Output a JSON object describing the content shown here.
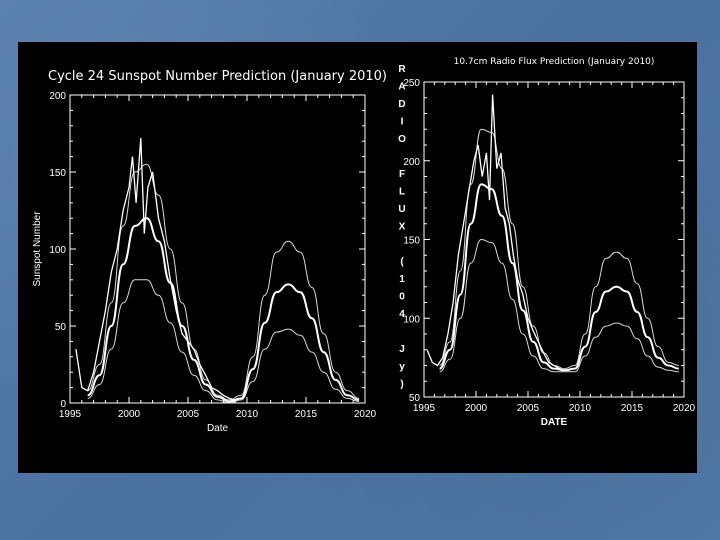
{
  "slide": {
    "background_color": "#4f77a6",
    "panel_color": "#000000",
    "line_color": "#ffffff"
  },
  "chart_data": [
    {
      "type": "line",
      "title": "Cycle 24 Sunspot Number Prediction (January 2010)",
      "xlabel": "Date",
      "ylabel": "Sunspot Number",
      "xlim": [
        1995,
        2020
      ],
      "ylim": [
        0,
        200
      ],
      "xticks": [
        "1995",
        "2000",
        "2005",
        "2010",
        "2015",
        "2020"
      ],
      "yticks": [
        "0",
        "50",
        "100",
        "150",
        "200"
      ],
      "grid": false,
      "series": [
        {
          "style": "observed-noisy",
          "x": [
            1995.5,
            1996.0,
            1996.5,
            1997.0,
            1997.5,
            1998.0,
            1998.5,
            1999.0,
            1999.5,
            2000.0,
            2000.3,
            2000.6,
            2001.0,
            2001.3,
            2001.6,
            2002.0,
            2002.5,
            2003.0,
            2003.5,
            2004.0,
            2004.5,
            2005.0,
            2005.5,
            2006.0,
            2006.5,
            2007.0,
            2007.5,
            2008.0,
            2008.5,
            2009.0
          ],
          "y": [
            35,
            10,
            8,
            20,
            40,
            60,
            85,
            100,
            125,
            140,
            160,
            130,
            172,
            110,
            140,
            150,
            120,
            105,
            80,
            60,
            45,
            40,
            35,
            25,
            18,
            10,
            8,
            5,
            3,
            2
          ]
        },
        {
          "style": "predicted-upper",
          "x": [
            1996.5,
            1997.5,
            1998.5,
            1999.5,
            2000.5,
            2001.5,
            2002.5,
            2003.5,
            2004.5,
            2005.5,
            2006.5,
            2007.5,
            2008.5,
            2009.5,
            2010.5,
            2011.5,
            2012.5,
            2013.5,
            2014.5,
            2015.5,
            2016.5,
            2017.5,
            2018.5,
            2019.5
          ],
          "y": [
            8,
            25,
            65,
            115,
            150,
            155,
            135,
            100,
            65,
            35,
            15,
            5,
            2,
            5,
            30,
            70,
            98,
            105,
            98,
            75,
            45,
            20,
            8,
            3
          ]
        },
        {
          "style": "predicted-mid",
          "x": [
            1996.5,
            1997.5,
            1998.5,
            1999.5,
            2000.5,
            2001.5,
            2002.5,
            2003.5,
            2004.5,
            2005.5,
            2006.5,
            2007.5,
            2008.5,
            2009.5,
            2010.5,
            2011.5,
            2012.5,
            2013.5,
            2014.5,
            2015.5,
            2016.5,
            2017.5,
            2018.5,
            2019.5
          ],
          "y": [
            5,
            18,
            50,
            90,
            115,
            120,
            105,
            78,
            50,
            28,
            12,
            4,
            1,
            3,
            22,
            52,
            72,
            77,
            72,
            55,
            33,
            15,
            5,
            2
          ]
        },
        {
          "style": "predicted-lower",
          "x": [
            1996.5,
            1997.5,
            1998.5,
            1999.5,
            2000.5,
            2001.5,
            2002.5,
            2003.5,
            2004.5,
            2005.5,
            2006.5,
            2007.5,
            2008.5,
            2009.5,
            2010.5,
            2011.5,
            2012.5,
            2013.5,
            2014.5,
            2015.5,
            2016.5,
            2017.5,
            2018.5,
            2019.5
          ],
          "y": [
            3,
            12,
            35,
            65,
            80,
            80,
            70,
            52,
            33,
            18,
            8,
            2,
            0,
            2,
            14,
            35,
            46,
            48,
            44,
            33,
            20,
            9,
            3,
            1
          ]
        }
      ]
    },
    {
      "type": "line",
      "title": "10.7cm Radio Flux Prediction (January 2010)",
      "xlabel": "DATE",
      "ylabel": "RADIO FLUX (10^4 Jy)",
      "ylabel_chars": [
        "R",
        "A",
        "D",
        "I",
        "O",
        "",
        "F",
        "L",
        "U",
        "X",
        "",
        "(",
        "1",
        "0",
        "4",
        "",
        "J",
        "y",
        ")"
      ],
      "xlim": [
        1995,
        2020
      ],
      "ylim": [
        50,
        250
      ],
      "xticks": [
        "1995",
        "2000",
        "2005",
        "2010",
        "2015",
        "2020"
      ],
      "yticks": [
        "50",
        "100",
        "150",
        "200",
        "250"
      ],
      "grid": false,
      "series": [
        {
          "style": "observed-noisy",
          "x": [
            1995.3,
            1995.8,
            1996.3,
            1996.8,
            1997.3,
            1997.8,
            1998.3,
            1998.8,
            1999.3,
            1999.8,
            2000.2,
            2000.6,
            2001.0,
            2001.3,
            2001.6,
            2002.0,
            2002.4,
            2002.8,
            2003.2,
            2003.6,
            2004.0,
            2004.5,
            2005.0,
            2005.5,
            2006.0,
            2006.5,
            2007.0,
            2007.5,
            2008.0,
            2008.5,
            2009.0
          ],
          "y": [
            80,
            72,
            70,
            75,
            90,
            110,
            140,
            160,
            180,
            200,
            210,
            190,
            205,
            175,
            242,
            195,
            205,
            170,
            160,
            140,
            125,
            115,
            100,
            92,
            85,
            78,
            72,
            70,
            68,
            67,
            67
          ]
        },
        {
          "style": "predicted-upper",
          "x": [
            1996.5,
            1997.5,
            1998.5,
            1999.5,
            2000.5,
            2001.5,
            2002.5,
            2003.5,
            2004.5,
            2005.5,
            2006.5,
            2007.5,
            2008.5,
            2009.5,
            2010.5,
            2011.5,
            2012.5,
            2013.5,
            2014.5,
            2015.5,
            2016.5,
            2017.5,
            2018.5,
            2019.5
          ],
          "y": [
            70,
            85,
            130,
            185,
            220,
            218,
            195,
            160,
            120,
            95,
            78,
            70,
            68,
            70,
            90,
            120,
            138,
            142,
            138,
            122,
            100,
            82,
            72,
            70
          ]
        },
        {
          "style": "predicted-mid",
          "x": [
            1996.5,
            1997.5,
            1998.5,
            1999.5,
            2000.5,
            2001.5,
            2002.5,
            2003.5,
            2004.5,
            2005.5,
            2006.5,
            2007.5,
            2008.5,
            2009.5,
            2010.5,
            2011.5,
            2012.5,
            2013.5,
            2014.5,
            2015.5,
            2016.5,
            2017.5,
            2018.5,
            2019.5
          ],
          "y": [
            68,
            80,
            115,
            160,
            185,
            182,
            165,
            135,
            105,
            85,
            72,
            68,
            67,
            68,
            82,
            104,
            117,
            120,
            117,
            104,
            88,
            75,
            70,
            68
          ]
        },
        {
          "style": "predicted-lower",
          "x": [
            1996.5,
            1997.5,
            1998.5,
            1999.5,
            2000.5,
            2001.5,
            2002.5,
            2003.5,
            2004.5,
            2005.5,
            2006.5,
            2007.5,
            2008.5,
            2009.5,
            2010.5,
            2011.5,
            2012.5,
            2013.5,
            2014.5,
            2015.5,
            2016.5,
            2017.5,
            2018.5,
            2019.5
          ],
          "y": [
            66,
            74,
            100,
            135,
            150,
            148,
            135,
            112,
            90,
            76,
            68,
            66,
            66,
            66,
            76,
            88,
            95,
            97,
            95,
            87,
            76,
            69,
            67,
            66
          ]
        }
      ]
    }
  ]
}
